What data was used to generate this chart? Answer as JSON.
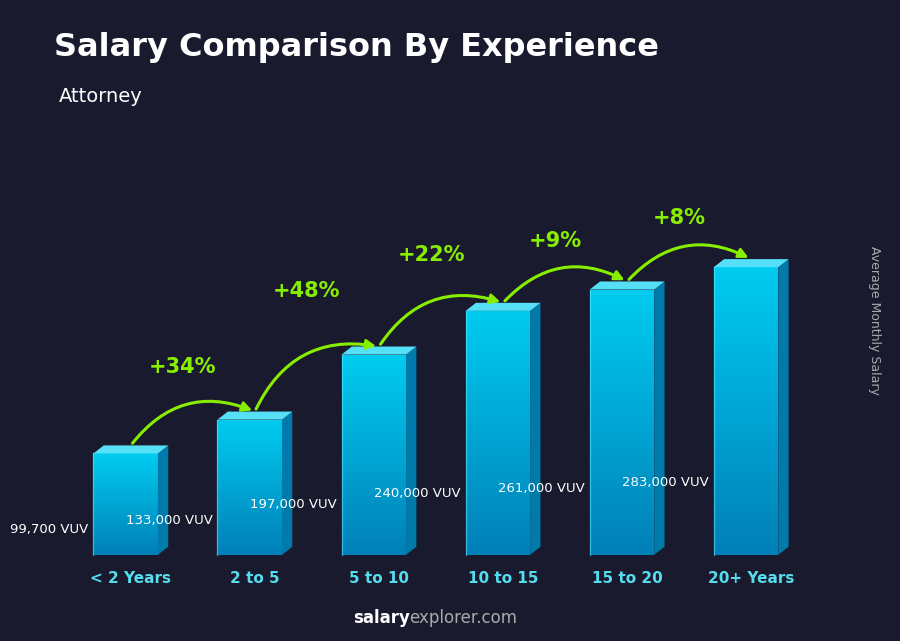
{
  "title": "Salary Comparison By Experience",
  "subtitle": "Attorney",
  "ylabel": "Average Monthly Salary",
  "footer_bold": "salary",
  "footer_normal": "explorer.com",
  "categories": [
    "< 2 Years",
    "2 to 5",
    "5 to 10",
    "10 to 15",
    "15 to 20",
    "20+ Years"
  ],
  "values": [
    99700,
    133000,
    197000,
    240000,
    261000,
    283000
  ],
  "value_labels": [
    "99,700 VUV",
    "133,000 VUV",
    "197,000 VUV",
    "240,000 VUV",
    "261,000 VUV",
    "283,000 VUV"
  ],
  "pct_labels": [
    "+34%",
    "+48%",
    "+22%",
    "+9%",
    "+8%"
  ],
  "bar_front_top": "#1ec8e8",
  "bar_front_bot": "#0090bb",
  "bar_top_face": "#55e0f8",
  "bar_right_face": "#007aaa",
  "bg_color": "#1a1a2e",
  "title_color": "#ffffff",
  "subtitle_color": "#ffffff",
  "value_label_color": "#ffffff",
  "pct_label_color": "#88ee00",
  "arrow_color": "#88ee00",
  "footer_bold_color": "#ffffff",
  "footer_normal_color": "#aaaaaa",
  "ylabel_color": "#aaaaaa",
  "xlabel_color": "#55ddee",
  "figsize": [
    9.0,
    6.41
  ],
  "dpi": 100
}
